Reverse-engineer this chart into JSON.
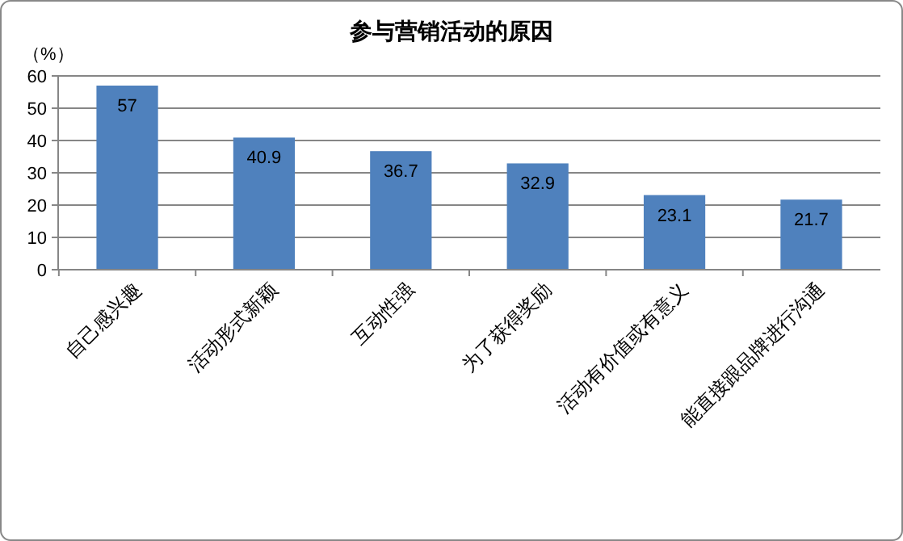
{
  "chart_data": {
    "type": "bar",
    "title": "参与营销活动的原因",
    "ylabel": "（%）",
    "categories": [
      "自己感兴趣",
      "活动形式新颖",
      "互动性强",
      "为了获得奖励",
      "活动有价值或有意义",
      "能直接跟品牌进行沟通"
    ],
    "values": [
      57,
      40.9,
      36.7,
      32.9,
      23.1,
      21.7
    ],
    "color": "#4f81bd",
    "ylim": [
      0,
      60
    ],
    "yticks": [
      0,
      10,
      20,
      30,
      40,
      50,
      60
    ],
    "grid": "y",
    "data_labels": true
  }
}
